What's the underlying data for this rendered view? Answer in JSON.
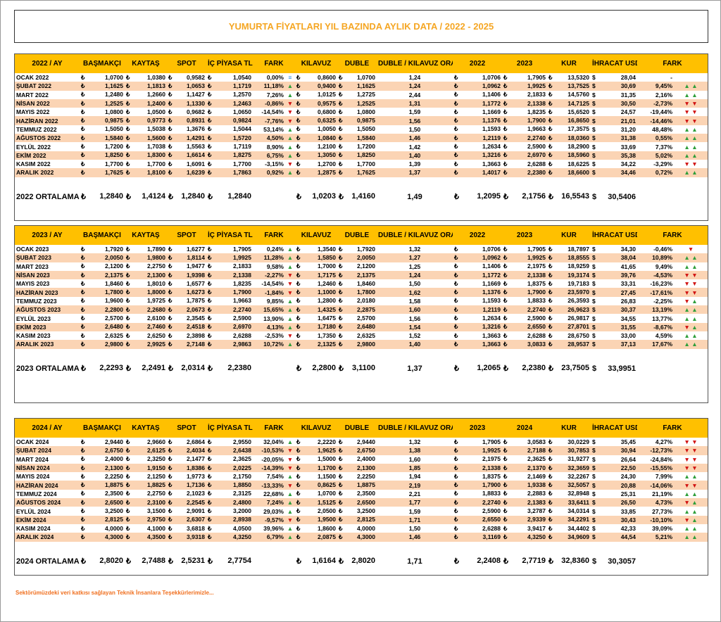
{
  "title": "YUMURTA FİYATLARI YIL BAZINDA AYLIK DATA / 2022 - 2025",
  "currency": "₺",
  "usd": "$",
  "footer": "Sektörümüzdeki veri katkısı sağlayan Teknik İnsanlara Teşekkürlerimizle...",
  "sections": [
    {
      "headers": [
        "2022 / AY",
        "BAŞMAKÇI",
        "KAYTAŞ",
        "SPOT",
        "İÇ PİYASA TL",
        "FARK",
        "KILAVUZ",
        "DUBLE",
        "DUBLE / KILAVUZ ORANI",
        "2022",
        "2023",
        "KUR",
        "İHRACAT USD",
        "FARK"
      ],
      "rows": [
        [
          "OCAK 2022",
          "1,0700",
          "1,0380",
          "0,9582",
          "1,0540",
          "0,00%",
          "≡",
          "0,8600",
          "1,0700",
          "1,24",
          "1,0706",
          "1,7905",
          "13,5320",
          "28,04",
          "-",
          null
        ],
        [
          "ŞUBAT 2022",
          "1,1625",
          "1,1813",
          "1,0653",
          "1,1719",
          "11,18%",
          "▲",
          "0,9400",
          "1,1625",
          "1,24",
          "1,0962",
          "1,9925",
          "13,7525",
          "30,69",
          "9,45%",
          "▲ ▲"
        ],
        [
          "MART 2022",
          "1,2480",
          "1,2660",
          "1,1427",
          "1,2570",
          "7,26%",
          "▲",
          "1,0125",
          "1,2725",
          "2,44",
          "1,1406",
          "2,1833",
          "14,5760",
          "31,35",
          "2,16%",
          "▲ ▲"
        ],
        [
          "NİSAN 2022",
          "1,2525",
          "1,2400",
          "1,1330",
          "1,2463",
          "-0,86%",
          "▼",
          "0,9575",
          "1,2525",
          "1,31",
          "1,1772",
          "2,1338",
          "14,7125",
          "30,50",
          "-2,73%",
          "▼ ▼"
        ],
        [
          "MAYIS 2022",
          "1,0800",
          "1,0500",
          "0,9682",
          "1,0650",
          "-14,54%",
          "▼",
          "0,6800",
          "1,0800",
          "1,59",
          "1,1669",
          "1,8235",
          "15,6520",
          "24,57",
          "-19,44%",
          "▼ ▼"
        ],
        [
          "HAZİRAN 2022",
          "0,9875",
          "0,9773",
          "0,8931",
          "0,9824",
          "-7,76%",
          "▼",
          "0,6325",
          "0,9875",
          "1,56",
          "1,1376",
          "1,7900",
          "16,8650",
          "21,01",
          "-14,46%",
          "▼ ▼"
        ],
        [
          "TEMMUZ 2022",
          "1,5050",
          "1,5038",
          "1,3676",
          "1,5044",
          "53,14%",
          "▲",
          "1,0050",
          "1,5050",
          "1,50",
          "1,1593",
          "1,9663",
          "17,3575",
          "31,20",
          "48,48%",
          "▲ ▲"
        ],
        [
          "AĞUSTOS 2022",
          "1,5840",
          "1,5600",
          "1,4291",
          "1,5720",
          "4,50%",
          "▲",
          "1,0840",
          "1,5840",
          "1,46",
          "1,2119",
          "2,2740",
          "18,0360",
          "31,38",
          "0,55%",
          "▲ ▲"
        ],
        [
          "EYLÜL 2022",
          "1,7200",
          "1,7038",
          "1,5563",
          "1,7119",
          "8,90%",
          "▲",
          "1,2100",
          "1,7200",
          "1,42",
          "1,2634",
          "2,5900",
          "18,2900",
          "33,69",
          "7,37%",
          "▲ ▲"
        ],
        [
          "EKİM 2022",
          "1,8250",
          "1,8300",
          "1,6614",
          "1,8275",
          "6,75%",
          "▲",
          "1,3050",
          "1,8250",
          "1,40",
          "1,3216",
          "2,6970",
          "18,5960",
          "35,38",
          "5,02%",
          "▲ ▲"
        ],
        [
          "KASIM 2022",
          "1,7700",
          "1,7700",
          "1,6091",
          "1,7700",
          "-3,15%",
          "▼",
          "1,2700",
          "1,7700",
          "1,39",
          "1,3663",
          "2,6288",
          "18,6225",
          "34,22",
          "-3,29%",
          "▼ ▼"
        ],
        [
          "ARALIK 2022",
          "1,7625",
          "1,8100",
          "1,6239",
          "1,7863",
          "0,92%",
          "▲",
          "1,2875",
          "1,7625",
          "1,37",
          "1,4017",
          "2,2380",
          "18,6600",
          "34,46",
          "0,72%",
          "▲ ▲"
        ]
      ],
      "average": [
        "2022 ORTALAMA",
        "1,2840",
        "1,4124",
        "1,2840",
        "1,2840",
        null,
        null,
        "1,0203",
        "1,4160",
        "1,49",
        "1,2095",
        "2,1756",
        "16,5543",
        "30,5406",
        null,
        null
      ]
    },
    {
      "headers": [
        "2023 / AY",
        "BAŞMAKÇI",
        "KAYTAŞ",
        "SPOT",
        "İÇ PİYASA TL",
        "FARK",
        "KILAVUZ",
        "DUBLE",
        "DUBLE / KILAVUZ ORANI",
        "2022",
        "2023",
        "KUR",
        "İHRACAT USD",
        "FARK"
      ],
      "rows": [
        [
          "OCAK 2023",
          "1,7920",
          "1,7890",
          "1,6277",
          "1,7905",
          "0,24%",
          "▲",
          "1,3540",
          "1,7920",
          "1,32",
          "1,0706",
          "1,7905",
          "18,7897",
          "34,30",
          "-0,46%",
          "▼"
        ],
        [
          "ŞUBAT 2023",
          "2,0050",
          "1,9800",
          "1,8114",
          "1,9925",
          "11,28%",
          "▲",
          "1,5850",
          "2,0050",
          "1,27",
          "1,0962",
          "1,9925",
          "18,8555",
          "38,04",
          "10,89%",
          "▲ ▲"
        ],
        [
          "MART 2023",
          "2,1200",
          "2,2750",
          "1,9477",
          "2,1833",
          "9,58%",
          "▲",
          "1,7000",
          "2,1200",
          "1,25",
          "1,1406",
          "2,1975",
          "18,9259",
          "41,65",
          "9,49%",
          "▲ ▲"
        ],
        [
          "NİSAN 2023",
          "2,1375",
          "2,1300",
          "1,9398",
          "2,1338",
          "-2,27%",
          "▼",
          "1,7175",
          "2,1375",
          "1,24",
          "1,1772",
          "2,1338",
          "19,3174",
          "39,76",
          "-4,53%",
          "▼ ▼"
        ],
        [
          "MAYIS 2023",
          "1,8460",
          "1,8010",
          "1,6577",
          "1,8235",
          "-14,54%",
          "▼",
          "1,2460",
          "1,8460",
          "1,50",
          "1,1669",
          "1,8375",
          "19,7183",
          "33,31",
          "-16,23%",
          "▼ ▼"
        ],
        [
          "HAZİRAN 2023",
          "1,7800",
          "1,8000",
          "1,6273",
          "1,7900",
          "-1,84%",
          "▼",
          "1,1000",
          "1,7800",
          "1,62",
          "1,1376",
          "1,7900",
          "23,5970",
          "27,45",
          "-17,61%",
          "▼ ▼"
        ],
        [
          "TEMMUZ 2023",
          "1,9600",
          "1,9725",
          "1,7875",
          "1,9663",
          "9,85%",
          "▲",
          "1,2800",
          "2,0180",
          "1,58",
          "1,1593",
          "1,8833",
          "26,3593",
          "26,83",
          "-2,25%",
          "▼ ▲"
        ],
        [
          "AĞUSTOS 2023",
          "2,2800",
          "2,2680",
          "2,0673",
          "2,2740",
          "15,65%",
          "▲",
          "1,4325",
          "2,2875",
          "1,60",
          "1,2119",
          "2,2740",
          "26,9623",
          "30,37",
          "13,19%",
          "▲ ▲"
        ],
        [
          "EYLÜL 2023",
          "2,5700",
          "2,6100",
          "2,3545",
          "2,5900",
          "13,90%",
          "▲",
          "1,6475",
          "2,5700",
          "1,56",
          "1,2634",
          "2,5900",
          "26,9817",
          "34,55",
          "13,77%",
          "▲ ▲"
        ],
        [
          "EKİM 2023",
          "2,6480",
          "2,7460",
          "2,4518",
          "2,6970",
          "4,13%",
          "▲",
          "1,7180",
          "2,6480",
          "1,54",
          "1,3216",
          "2,6550",
          "27,8701",
          "31,55",
          "-8,67%",
          "▼ ▲"
        ],
        [
          "KASIM 2023",
          "2,6325",
          "2,6250",
          "2,3898",
          "2,6288",
          "-2,53%",
          "▼",
          "1,7350",
          "2,6325",
          "1,52",
          "1,3663",
          "2,6288",
          "28,6750",
          "33,00",
          "4,59%",
          "▲ ▲"
        ],
        [
          "ARALIK 2023",
          "2,9800",
          "2,9925",
          "2,7148",
          "2,9863",
          "10,72%",
          "▲",
          "2,1325",
          "2,9800",
          "1,40",
          "1,3663",
          "3,0833",
          "28,9537",
          "37,13",
          "17,67%",
          "▲ ▲"
        ]
      ],
      "average": [
        "2023 ORTALAMA",
        "2,2293",
        "2,2491",
        "2,0314",
        "2,2380",
        null,
        null,
        "2,2800",
        "3,1100",
        "1,37",
        "1,2065",
        "2,2380",
        "23,7505",
        "33,9951",
        null,
        null
      ]
    },
    {
      "headers": [
        "2024 / AY",
        "BAŞMAKÇI",
        "KAYTAŞ",
        "SPOT",
        "İÇ PİYASA TL",
        "FARK",
        "KILAVUZ",
        "DUBLE",
        "DUBLE / KILAVUZ ORANI",
        "2023",
        "2024",
        "KUR",
        "İHRACAT USD",
        "FARK"
      ],
      "rows": [
        [
          "OCAK 2024",
          "2,9440",
          "2,9660",
          "2,6864",
          "2,9550",
          "32,04%",
          "▲",
          "2,2220",
          "2,9440",
          "1,32",
          "1,7905",
          "3,0583",
          "30,0229",
          "35,45",
          "4,27%",
          "▼ ▼"
        ],
        [
          "ŞUBAT 2024",
          "2,6750",
          "2,6125",
          "2,4034",
          "2,6438",
          "-10,53%",
          "▼",
          "1,9625",
          "2,6750",
          "1,38",
          "1,9925",
          "2,7188",
          "30,7853",
          "30,94",
          "-12,73%",
          "▼ ▼"
        ],
        [
          "MART 2024",
          "2,4000",
          "2,3250",
          "2,1477",
          "2,3625",
          "-20,05%",
          "▼",
          "1,5000",
          "2,4000",
          "1,60",
          "2,1975",
          "2,3625",
          "31,9277",
          "26,64",
          "-24,84%",
          "▼ ▼"
        ],
        [
          "NİSAN 2024",
          "2,1300",
          "1,9150",
          "1,8386",
          "2,0225",
          "-14,39%",
          "▼",
          "1,1700",
          "2,1300",
          "1,85",
          "2,1338",
          "2,1370",
          "32,3659",
          "22,50",
          "-15,55%",
          "▼ ▼"
        ],
        [
          "MAYIS 2024",
          "2,2250",
          "2,1250",
          "1,9773",
          "2,1750",
          "7,54%",
          "▲",
          "1,1500",
          "2,2250",
          "1,94",
          "1,8375",
          "2,1469",
          "32,2267",
          "24,30",
          "7,99%",
          "▲ ▲"
        ],
        [
          "HAZİRAN 2024",
          "1,8875",
          "1,8825",
          "1,7136",
          "1,8850",
          "-13,33%",
          "▼",
          "0,8625",
          "1,8875",
          "2,19",
          "1,7900",
          "1,9338",
          "32,5057",
          "20,88",
          "-14,06%",
          "▼ ▼"
        ],
        [
          "TEMMUZ 2024",
          "2,3500",
          "2,2750",
          "2,1023",
          "2,3125",
          "22,68%",
          "▲",
          "1,0700",
          "2,3500",
          "2,21",
          "1,8833",
          "2,2883",
          "32,8948",
          "25,31",
          "21,19%",
          "▲ ▲"
        ],
        [
          "AĞUSTOS 2024",
          "2,6500",
          "2,3100",
          "2,2545",
          "2,4800",
          "7,24%",
          "▲",
          "1,5125",
          "2,6500",
          "1,77",
          "2,2740",
          "2,1383",
          "33,6411",
          "26,50",
          "4,73%",
          "▼ ▲"
        ],
        [
          "EYLÜL 2024",
          "3,2500",
          "3,1500",
          "2,9091",
          "3,2000",
          "29,03%",
          "▲",
          "2,0500",
          "3,2500",
          "1,59",
          "2,5900",
          "3,2787",
          "34,0314",
          "33,85",
          "27,73%",
          "▲ ▲"
        ],
        [
          "EKİM 2024",
          "2,8125",
          "2,9750",
          "2,6307",
          "2,8938",
          "-9,57%",
          "▼",
          "1,9500",
          "2,8125",
          "1,71",
          "2,6550",
          "2,9339",
          "34,2291",
          "30,43",
          "-10,10%",
          "▼ ▲"
        ],
        [
          "KASIM 2024",
          "4,0000",
          "4,1000",
          "3,6818",
          "4,0500",
          "39,96%",
          "▲",
          "1,8600",
          "4,0000",
          "1,50",
          "2,6288",
          "3,9417",
          "34,4402",
          "42,33",
          "39,09%",
          "▲ ▲"
        ],
        [
          "ARALIK 2024",
          "4,3000",
          "4,3500",
          "3,9318",
          "4,3250",
          "6,79%",
          "▲",
          "2,0875",
          "4,3000",
          "1,46",
          "3,1169",
          "4,3250",
          "34,9609",
          "44,54",
          "5,21%",
          "▲ ▲"
        ]
      ],
      "average": [
        "2024 ORTALAMA",
        "2,8020",
        "2,7488",
        "2,5231",
        "2,7754",
        null,
        null,
        "1,6164",
        "2,8020",
        "1,71",
        "2,2408",
        "2,7719",
        "32,8360",
        "30,3057",
        null,
        null
      ]
    }
  ]
}
